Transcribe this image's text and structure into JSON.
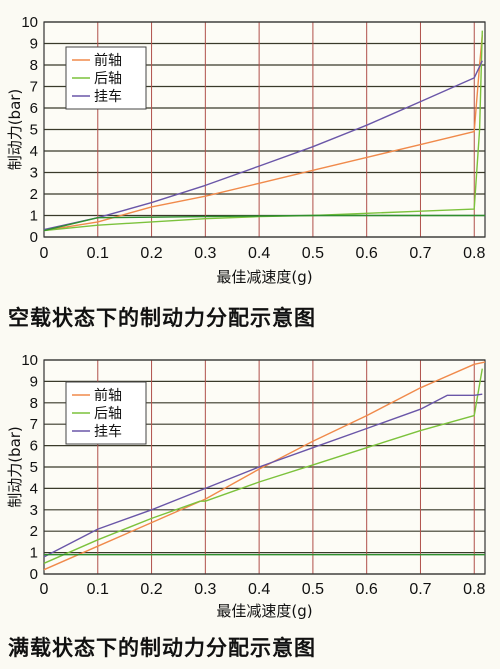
{
  "chart_data": [
    {
      "type": "line",
      "caption": "空载状态下的制动力分配示意图",
      "xlabel": "最佳减速度(g)",
      "ylabel": "制动力(bar)",
      "xlim": [
        0,
        0.82
      ],
      "ylim": [
        0,
        10
      ],
      "x_ticks": [
        "0",
        "0.1",
        "0.2",
        "0.3",
        "0.4",
        "0.5",
        "0.6",
        "0.7",
        "0.8"
      ],
      "y_ticks": [
        "0",
        "1",
        "2",
        "3",
        "4",
        "5",
        "6",
        "7",
        "8",
        "9",
        "10"
      ],
      "grid": true,
      "legend_position": "top-left",
      "series": [
        {
          "name": "前轴",
          "color": "#f08a4b",
          "points": [
            [
              0,
              0.3
            ],
            [
              0.1,
              0.7
            ],
            [
              0.2,
              1.4
            ],
            [
              0.3,
              1.9
            ],
            [
              0.4,
              2.5
            ],
            [
              0.5,
              3.1
            ],
            [
              0.6,
              3.7
            ],
            [
              0.7,
              4.3
            ],
            [
              0.8,
              4.9
            ],
            [
              0.81,
              8.0
            ],
            [
              0.815,
              9.4
            ]
          ]
        },
        {
          "name": "后轴",
          "color": "#7cc23c",
          "points": [
            [
              0,
              0.3
            ],
            [
              0.1,
              0.55
            ],
            [
              0.2,
              0.7
            ],
            [
              0.3,
              0.85
            ],
            [
              0.4,
              0.95
            ],
            [
              0.5,
              1.0
            ],
            [
              0.6,
              1.1
            ],
            [
              0.7,
              1.2
            ],
            [
              0.8,
              1.3
            ],
            [
              0.81,
              5.0
            ],
            [
              0.815,
              9.6
            ]
          ]
        },
        {
          "name": "挂车",
          "color": "#6a56a8",
          "points": [
            [
              0,
              0.35
            ],
            [
              0.1,
              0.9
            ],
            [
              0.2,
              1.6
            ],
            [
              0.3,
              2.4
            ],
            [
              0.4,
              3.3
            ],
            [
              0.5,
              4.2
            ],
            [
              0.6,
              5.2
            ],
            [
              0.7,
              6.3
            ],
            [
              0.8,
              7.4
            ],
            [
              0.815,
              8.2
            ]
          ]
        },
        {
          "name": "",
          "color": "#2f8f2f",
          "points": [
            [
              0,
              0.3
            ],
            [
              0.1,
              0.9
            ],
            [
              0.2,
              0.92
            ],
            [
              0.3,
              0.95
            ],
            [
              0.39,
              0.97
            ],
            [
              0.5,
              1.0
            ],
            [
              0.6,
              1.0
            ],
            [
              0.7,
              1.0
            ],
            [
              0.82,
              1.0
            ]
          ]
        }
      ]
    },
    {
      "type": "line",
      "caption": "满载状态下的制动力分配示意图",
      "xlabel": "最佳减速度(g)",
      "ylabel": "制动力(bar)",
      "xlim": [
        0,
        0.82
      ],
      "ylim": [
        0,
        10
      ],
      "x_ticks": [
        "0",
        "0.1",
        "0.2",
        "0.3",
        "0.4",
        "0.5",
        "0.6",
        "0.7",
        "0.8"
      ],
      "y_ticks": [
        "0",
        "1",
        "2",
        "3",
        "4",
        "5",
        "6",
        "7",
        "8",
        "9",
        "10"
      ],
      "grid": true,
      "legend_position": "top-left",
      "series": [
        {
          "name": "前轴",
          "color": "#f08a4b",
          "points": [
            [
              0,
              0.2
            ],
            [
              0.1,
              1.3
            ],
            [
              0.2,
              2.4
            ],
            [
              0.3,
              3.5
            ],
            [
              0.4,
              4.9
            ],
            [
              0.5,
              6.2
            ],
            [
              0.6,
              7.4
            ],
            [
              0.7,
              8.7
            ],
            [
              0.8,
              9.8
            ],
            [
              0.82,
              9.9
            ]
          ]
        },
        {
          "name": "后轴",
          "color": "#7cc23c",
          "points": [
            [
              0,
              0.5
            ],
            [
              0.1,
              1.6
            ],
            [
              0.2,
              2.6
            ],
            [
              0.29,
              3.4
            ],
            [
              0.3,
              3.4
            ],
            [
              0.4,
              4.3
            ],
            [
              0.5,
              5.1
            ],
            [
              0.6,
              5.9
            ],
            [
              0.7,
              6.7
            ],
            [
              0.8,
              7.4
            ],
            [
              0.815,
              9.6
            ]
          ]
        },
        {
          "name": "挂车",
          "color": "#6a56a8",
          "points": [
            [
              0,
              0.8
            ],
            [
              0.1,
              2.1
            ],
            [
              0.2,
              3.0
            ],
            [
              0.3,
              4.0
            ],
            [
              0.4,
              5.0
            ],
            [
              0.5,
              5.9
            ],
            [
              0.6,
              6.8
            ],
            [
              0.7,
              7.7
            ],
            [
              0.75,
              8.35
            ],
            [
              0.8,
              8.35
            ],
            [
              0.815,
              8.4
            ]
          ]
        },
        {
          "name": "",
          "color": "#2f8f2f",
          "points": [
            [
              0,
              0.9
            ],
            [
              0.1,
              0.9
            ],
            [
              0.2,
              0.9
            ],
            [
              0.3,
              0.9
            ],
            [
              0.4,
              0.9
            ],
            [
              0.5,
              0.9
            ],
            [
              0.6,
              0.9
            ],
            [
              0.7,
              0.9
            ],
            [
              0.82,
              0.9
            ]
          ]
        }
      ]
    }
  ]
}
